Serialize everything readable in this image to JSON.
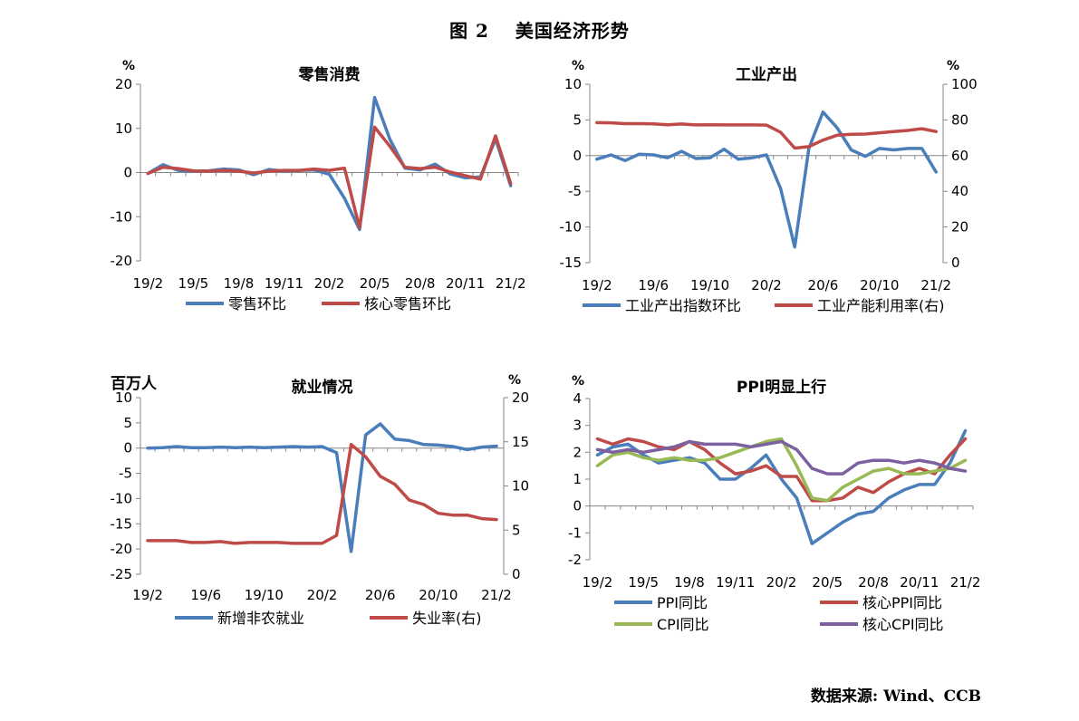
{
  "figure": {
    "title": "图 2　 美国经济形势"
  },
  "source": "数据来源: Wind、CCB",
  "colors": {
    "blue": "#4a7ebb",
    "red": "#be4b48",
    "green": "#98b954",
    "purple": "#7d60a0",
    "axis": "#868686"
  },
  "chart_data": [
    {
      "id": "retail",
      "type": "line",
      "title": "零售消费",
      "y_unit": "%",
      "ylim": [
        -20,
        20
      ],
      "yticks": [
        -20,
        -10,
        0,
        10,
        20
      ],
      "n_points": 25,
      "x_tick_labels": [
        {
          "index": 0,
          "label": "19/2"
        },
        {
          "index": 3,
          "label": "19/5"
        },
        {
          "index": 6,
          "label": "19/8"
        },
        {
          "index": 9,
          "label": "19/11"
        },
        {
          "index": 12,
          "label": "20/2"
        },
        {
          "index": 15,
          "label": "20/5"
        },
        {
          "index": 18,
          "label": "20/8"
        },
        {
          "index": 21,
          "label": "20/11"
        },
        {
          "index": 24,
          "label": "21/2"
        }
      ],
      "series": [
        {
          "name": "零售环比",
          "color": "#4a7ebb",
          "axis": "left",
          "values": [
            -0.2,
            1.8,
            0.5,
            0.3,
            0.4,
            0.8,
            0.6,
            -0.5,
            0.7,
            0.3,
            0.5,
            0.6,
            -0.4,
            -5.8,
            -12.9,
            17.0,
            7.6,
            1.0,
            0.6,
            1.9,
            -0.3,
            -1.2,
            -1.0,
            7.6,
            -3.0
          ]
        },
        {
          "name": "核心零售环比",
          "color": "#be4b48",
          "axis": "left",
          "values": [
            -0.2,
            1.2,
            0.9,
            0.4,
            0.3,
            0.5,
            0.3,
            -0.1,
            0.3,
            0.5,
            0.5,
            0.8,
            0.5,
            1.0,
            -12.5,
            10.3,
            6.0,
            1.2,
            0.9,
            1.2,
            0.1,
            -0.7,
            -1.5,
            8.3,
            -2.5
          ]
        }
      ]
    },
    {
      "id": "industry",
      "type": "line",
      "title": "工业产出",
      "y_unit": "%",
      "y2_unit": "%",
      "ylim": [
        -15,
        10
      ],
      "yticks": [
        -15,
        -10,
        -5,
        0,
        5,
        10
      ],
      "y2lim": [
        0,
        100
      ],
      "y2ticks": [
        0,
        20,
        40,
        60,
        80,
        100
      ],
      "n_points": 25,
      "x_tick_labels": [
        {
          "index": 0,
          "label": "19/2"
        },
        {
          "index": 4,
          "label": "19/6"
        },
        {
          "index": 8,
          "label": "19/10"
        },
        {
          "index": 12,
          "label": "20/2"
        },
        {
          "index": 16,
          "label": "20/6"
        },
        {
          "index": 20,
          "label": "20/10"
        },
        {
          "index": 24,
          "label": "21/2"
        }
      ],
      "series": [
        {
          "name": "工业产出指数环比",
          "color": "#4a7ebb",
          "axis": "left",
          "values": [
            -0.5,
            0.1,
            -0.7,
            0.2,
            0.1,
            -0.3,
            0.6,
            -0.4,
            -0.3,
            0.9,
            -0.5,
            -0.3,
            0.1,
            -4.6,
            -12.8,
            1.0,
            6.1,
            3.9,
            0.8,
            -0.1,
            1.0,
            0.8,
            1.0,
            1.0,
            -2.3
          ]
        },
        {
          "name": "工业产能利用率(右)",
          "color": "#be4b48",
          "axis": "right",
          "values": [
            78.5,
            78.4,
            77.9,
            77.9,
            77.8,
            77.3,
            77.7,
            77.2,
            77.3,
            77.2,
            77.2,
            77.2,
            77.1,
            73.1,
            64.2,
            65.0,
            68.7,
            71.4,
            72.0,
            72.1,
            72.8,
            73.5,
            74.1,
            75.1,
            73.5
          ]
        }
      ]
    },
    {
      "id": "employment",
      "type": "line",
      "title": "就业情况",
      "y_unit": "百万人",
      "y2_unit": "%",
      "ylim": [
        -25,
        10
      ],
      "yticks": [
        -25,
        -20,
        -15,
        -10,
        -5,
        0,
        5,
        10
      ],
      "y2lim": [
        0,
        20
      ],
      "y2ticks": [
        0,
        5,
        10,
        15,
        20
      ],
      "n_points": 25,
      "x_tick_labels": [
        {
          "index": 0,
          "label": "19/2"
        },
        {
          "index": 4,
          "label": "19/6"
        },
        {
          "index": 8,
          "label": "19/10"
        },
        {
          "index": 12,
          "label": "20/2"
        },
        {
          "index": 16,
          "label": "20/6"
        },
        {
          "index": 20,
          "label": "20/10"
        },
        {
          "index": 24,
          "label": "21/2"
        }
      ],
      "series": [
        {
          "name": "新增非农就业",
          "color": "#4a7ebb",
          "axis": "left",
          "values": [
            0.0,
            0.1,
            0.3,
            0.1,
            0.1,
            0.2,
            0.1,
            0.2,
            0.1,
            0.2,
            0.3,
            0.2,
            0.3,
            -0.9,
            -20.5,
            2.6,
            4.8,
            1.8,
            1.5,
            0.7,
            0.6,
            0.3,
            -0.3,
            0.2,
            0.4
          ]
        },
        {
          "name": "失业率(右)",
          "color": "#be4b48",
          "axis": "right",
          "values": [
            3.8,
            3.8,
            3.8,
            3.6,
            3.6,
            3.7,
            3.5,
            3.6,
            3.6,
            3.6,
            3.5,
            3.5,
            3.5,
            4.4,
            14.7,
            13.3,
            11.1,
            10.2,
            8.4,
            7.9,
            6.9,
            6.7,
            6.7,
            6.3,
            6.2
          ]
        }
      ]
    },
    {
      "id": "ppi",
      "type": "line",
      "title": "PPI明显上行",
      "y_unit": "%",
      "ylim": [
        -2,
        4
      ],
      "yticks": [
        -2,
        -1,
        0,
        1,
        2,
        3,
        4
      ],
      "n_points": 25,
      "x_tick_labels": [
        {
          "index": 0,
          "label": "19/2"
        },
        {
          "index": 3,
          "label": "19/5"
        },
        {
          "index": 6,
          "label": "19/8"
        },
        {
          "index": 9,
          "label": "19/11"
        },
        {
          "index": 12,
          "label": "20/2"
        },
        {
          "index": 15,
          "label": "20/5"
        },
        {
          "index": 18,
          "label": "20/8"
        },
        {
          "index": 21,
          "label": "20/11"
        },
        {
          "index": 24,
          "label": "21/2"
        }
      ],
      "series": [
        {
          "name": "PPI同比",
          "color": "#4a7ebb",
          "axis": "left",
          "values": [
            1.9,
            2.2,
            2.3,
            1.9,
            1.6,
            1.7,
            1.8,
            1.6,
            1.0,
            1.0,
            1.4,
            1.9,
            1.0,
            0.3,
            -1.4,
            -1.0,
            -0.6,
            -0.3,
            -0.2,
            0.3,
            0.6,
            0.8,
            0.8,
            1.6,
            2.8
          ]
        },
        {
          "name": "核心PPI同比",
          "color": "#be4b48",
          "axis": "left",
          "values": [
            2.5,
            2.3,
            2.5,
            2.4,
            2.2,
            2.1,
            2.4,
            2.1,
            1.6,
            1.2,
            1.3,
            1.5,
            1.1,
            1.1,
            0.2,
            0.2,
            0.3,
            0.7,
            0.5,
            0.9,
            1.2,
            1.4,
            1.2,
            1.9,
            2.5
          ]
        },
        {
          "name": "CPI同比",
          "color": "#98b954",
          "axis": "left",
          "values": [
            1.5,
            1.9,
            2.0,
            1.8,
            1.7,
            1.8,
            1.7,
            1.7,
            1.8,
            2.0,
            2.2,
            2.4,
            2.5,
            1.5,
            0.3,
            0.2,
            0.7,
            1.0,
            1.3,
            1.4,
            1.2,
            1.2,
            1.3,
            1.4,
            1.7
          ]
        },
        {
          "name": "核心CPI同比",
          "color": "#7d60a0",
          "axis": "left",
          "values": [
            2.1,
            2.0,
            2.1,
            2.0,
            2.1,
            2.2,
            2.4,
            2.3,
            2.3,
            2.3,
            2.2,
            2.3,
            2.4,
            2.1,
            1.4,
            1.2,
            1.2,
            1.6,
            1.7,
            1.7,
            1.6,
            1.7,
            1.6,
            1.4,
            1.3
          ]
        }
      ]
    }
  ]
}
